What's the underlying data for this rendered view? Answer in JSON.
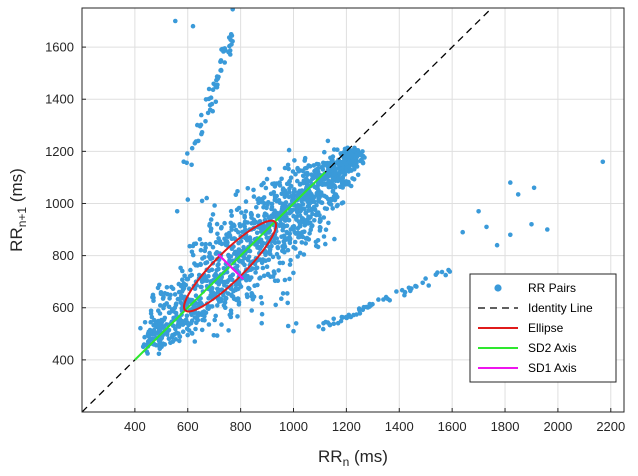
{
  "chart_data": {
    "type": "scatter",
    "xlabel": {
      "base": "RR",
      "sub": "n",
      "unit": " (ms)"
    },
    "ylabel": {
      "base": "RR",
      "sub": "n+1",
      "unit": " (ms)"
    },
    "xlim": [
      200,
      2250
    ],
    "ylim": [
      200,
      1750
    ],
    "xticks": [
      400,
      600,
      800,
      1000,
      1200,
      1400,
      1600,
      1800,
      2000,
      2200
    ],
    "yticks": [
      400,
      600,
      800,
      1000,
      1200,
      1400,
      1600
    ],
    "grid": true,
    "legend_position": "bottom-right",
    "legend": [
      {
        "name": "RR Pairs",
        "style": "marker",
        "color": "#3a9ad9"
      },
      {
        "name": "Identity Line",
        "style": "dashed",
        "color": "#000000"
      },
      {
        "name": "Ellipse",
        "style": "line",
        "color": "#e01b1b"
      },
      {
        "name": "SD2 Axis",
        "style": "line",
        "color": "#2ee82e"
      },
      {
        "name": "SD1 Axis",
        "style": "line",
        "color": "#ee14ee"
      }
    ],
    "colors": {
      "points": "#3a9ad9",
      "identity": "#000000",
      "ellipse": "#e01b1b",
      "sd2": "#2ee82e",
      "sd1": "#ee14ee"
    },
    "identity_line": [
      [
        200,
        200
      ],
      [
        1750,
        1750
      ]
    ],
    "ellipse": {
      "center": [
        760,
        760
      ],
      "sd2_half_length": 240,
      "sd1_half_length": 55,
      "angle_deg": 45
    },
    "sd2_axis": [
      [
        400,
        400
      ],
      [
        1120,
        1120
      ]
    ],
    "sd1_axis": [
      [
        715,
        805
      ],
      [
        810,
        710
      ]
    ],
    "main_cloud": {
      "from": [
        440,
        460
      ],
      "to": [
        1250,
        1200
      ],
      "spread_sd1": 45,
      "point_count": 1400
    },
    "outlier_bands": [
      {
        "from": [
          600,
          1150
        ],
        "to": [
          770,
          1650
        ]
      },
      {
        "from": [
          1100,
          520
        ],
        "to": [
          1590,
          740
        ]
      }
    ],
    "outliers": [
      {
        "x": 553,
        "y": 1700
      },
      {
        "x": 620,
        "y": 1680
      },
      {
        "x": 770,
        "y": 1745
      },
      {
        "x": 600,
        "y": 1015
      },
      {
        "x": 560,
        "y": 970
      },
      {
        "x": 1820,
        "y": 1080
      },
      {
        "x": 1850,
        "y": 1035
      },
      {
        "x": 1910,
        "y": 1060
      },
      {
        "x": 2170,
        "y": 1160
      },
      {
        "x": 1700,
        "y": 970
      },
      {
        "x": 1770,
        "y": 840
      },
      {
        "x": 1960,
        "y": 900
      },
      {
        "x": 1820,
        "y": 880
      },
      {
        "x": 1730,
        "y": 910
      },
      {
        "x": 1640,
        "y": 890
      },
      {
        "x": 1900,
        "y": 920
      },
      {
        "x": 1000,
        "y": 510
      },
      {
        "x": 980,
        "y": 530
      },
      {
        "x": 1010,
        "y": 540
      },
      {
        "x": 1130,
        "y": 1240
      }
    ]
  }
}
